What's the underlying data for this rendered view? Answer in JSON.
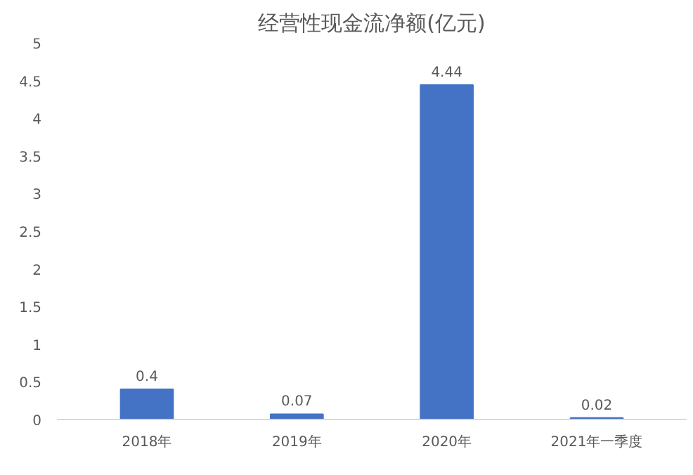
{
  "chart_data": {
    "type": "bar",
    "title": "经营性现金流净额(亿元)",
    "categories": [
      "2018年",
      "2019年",
      "2020年",
      "2021年一季度"
    ],
    "values": [
      0.4,
      0.07,
      4.44,
      0.02
    ],
    "color": "#4472c4",
    "data_labels": true,
    "ylim": [
      0,
      5
    ],
    "yticks": [
      0,
      0.5,
      1,
      1.5,
      2,
      2.5,
      3,
      3.5,
      4,
      4.5,
      5
    ],
    "grid": false
  }
}
